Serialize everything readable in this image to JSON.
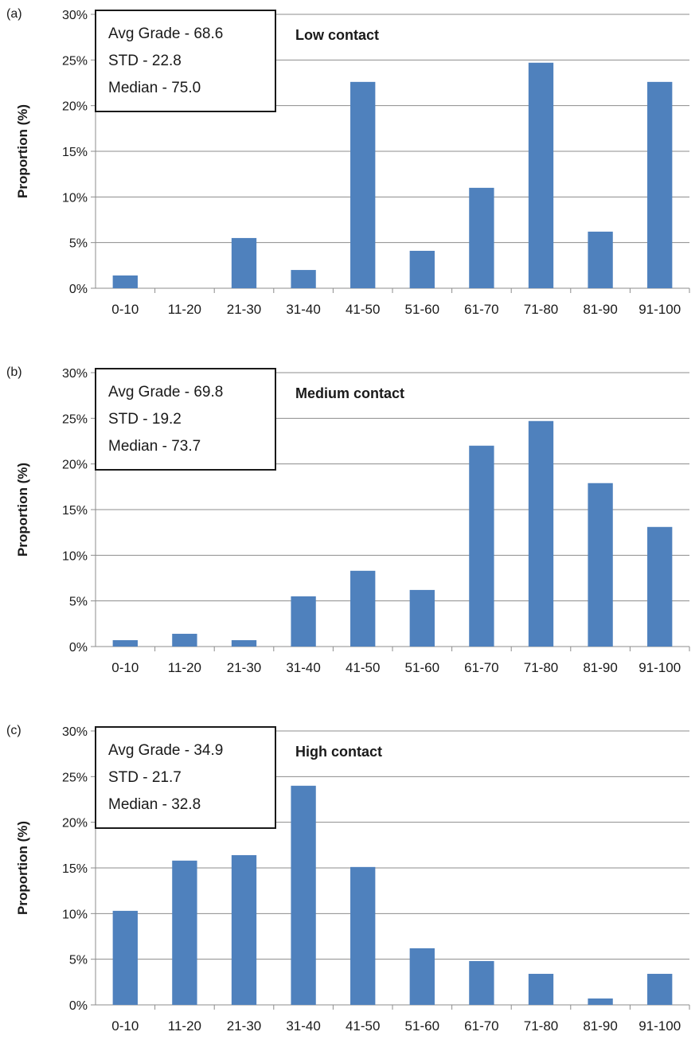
{
  "chart_data": [
    {
      "type": "bar",
      "panel_label": "(a)",
      "title": "Low contact",
      "ylabel": "Proportion (%)",
      "xlabel": "",
      "categories": [
        "0-10",
        "11-20",
        "21-30",
        "31-40",
        "41-50",
        "51-60",
        "61-70",
        "71-80",
        "81-90",
        "91-100"
      ],
      "values": [
        1.4,
        0,
        5.5,
        2.0,
        22.6,
        4.1,
        11.0,
        24.7,
        6.2,
        22.6
      ],
      "ylim": [
        0,
        30
      ],
      "yticks": [
        "0%",
        "5%",
        "10%",
        "15%",
        "20%",
        "25%",
        "30%"
      ],
      "stats": [
        "Avg Grade - 68.6",
        "STD - 22.8",
        "Median - 75.0"
      ],
      "grid": true,
      "bar_color": "#4f81bd"
    },
    {
      "type": "bar",
      "panel_label": "(b)",
      "title": "Medium contact",
      "ylabel": "Proportion (%)",
      "xlabel": "",
      "categories": [
        "0-10",
        "11-20",
        "21-30",
        "31-40",
        "41-50",
        "51-60",
        "61-70",
        "71-80",
        "81-90",
        "91-100"
      ],
      "values": [
        0.7,
        1.4,
        0.7,
        5.5,
        8.3,
        6.2,
        22.0,
        24.7,
        17.9,
        13.1
      ],
      "ylim": [
        0,
        30
      ],
      "yticks": [
        "0%",
        "5%",
        "10%",
        "15%",
        "20%",
        "25%",
        "30%"
      ],
      "stats": [
        "Avg Grade - 69.8",
        "STD - 19.2",
        "Median - 73.7"
      ],
      "grid": true,
      "bar_color": "#4f81bd"
    },
    {
      "type": "bar",
      "panel_label": "(c)",
      "title": "High contact",
      "ylabel": "Proportion (%)",
      "xlabel": "",
      "categories": [
        "0-10",
        "11-20",
        "21-30",
        "31-40",
        "41-50",
        "51-60",
        "61-70",
        "71-80",
        "81-90",
        "91-100"
      ],
      "values": [
        10.3,
        15.8,
        16.4,
        24.0,
        15.1,
        6.2,
        4.8,
        3.4,
        0.7,
        3.4
      ],
      "ylim": [
        0,
        30
      ],
      "yticks": [
        "0%",
        "5%",
        "10%",
        "15%",
        "20%",
        "25%",
        "30%"
      ],
      "stats": [
        "Avg Grade - 34.9",
        "STD - 21.7",
        "Median - 32.8"
      ],
      "grid": true,
      "bar_color": "#4f81bd"
    }
  ]
}
